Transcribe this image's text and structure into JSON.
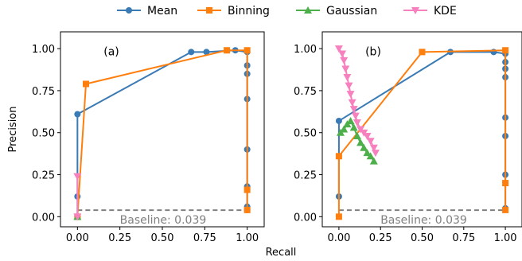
{
  "legend": {
    "placement": "top-center",
    "entries": [
      {
        "name": "Mean",
        "color": "#3a7ab5",
        "marker": "circle"
      },
      {
        "name": "Binning",
        "color": "#ff7f0e",
        "marker": "square"
      },
      {
        "name": "Gaussian",
        "color": "#4daf4a",
        "marker": "triangle-up"
      },
      {
        "name": "KDE",
        "color": "#f781bf",
        "marker": "triangle-down"
      }
    ]
  },
  "shared_xlabel": "Recall",
  "chart_data": [
    {
      "type": "line",
      "panel_label": "(a)",
      "xlabel": "",
      "ylabel": "Precision",
      "xlim": [
        -0.1,
        1.1
      ],
      "ylim": [
        -0.06,
        1.1
      ],
      "xticks": [
        0.0,
        0.25,
        0.5,
        0.75,
        1.0
      ],
      "xticklabels": [
        "0.00",
        "0.25",
        "0.50",
        "0.75",
        "1.00"
      ],
      "yticks": [
        0.0,
        0.25,
        0.5,
        0.75,
        1.0
      ],
      "yticklabels": [
        "0.00",
        "0.25",
        "0.50",
        "0.75",
        "1.00"
      ],
      "grid": false,
      "baseline": {
        "value": 0.039,
        "label": "Baseline: 0.039"
      },
      "series": [
        {
          "name": "Mean",
          "x": [
            0.0,
            0.0,
            0.0,
            0.67,
            0.76,
            0.93,
            1.0,
            1.0,
            1.0,
            1.0,
            1.0,
            1.0,
            1.0,
            1.0
          ],
          "y": [
            0.0,
            0.12,
            0.61,
            0.98,
            0.98,
            0.99,
            0.98,
            0.9,
            0.85,
            0.7,
            0.4,
            0.18,
            0.06,
            0.04
          ]
        },
        {
          "name": "Binning",
          "x": [
            0.0,
            0.05,
            0.88,
            1.0,
            1.0,
            1.0
          ],
          "y": [
            0.0,
            0.79,
            0.99,
            0.99,
            0.16,
            0.04
          ]
        },
        {
          "name": "Gaussian",
          "x": [
            0.0
          ],
          "y": [
            0.0
          ]
        },
        {
          "name": "KDE",
          "x": [
            0.0,
            0.0
          ],
          "y": [
            0.0,
            0.24
          ]
        }
      ]
    },
    {
      "type": "line",
      "panel_label": "(b)",
      "xlabel": "",
      "ylabel": "",
      "xlim": [
        -0.1,
        1.1
      ],
      "ylim": [
        -0.06,
        1.1
      ],
      "xticks": [
        0.0,
        0.25,
        0.5,
        0.75,
        1.0
      ],
      "xticklabels": [
        "0.00",
        "0.25",
        "0.50",
        "0.75",
        "1.00"
      ],
      "yticks": [
        0.0,
        0.25,
        0.5,
        0.75,
        1.0
      ],
      "yticklabels": [
        "0.00",
        "0.25",
        "0.50",
        "0.75",
        "1.00"
      ],
      "grid": false,
      "baseline": {
        "value": 0.039,
        "label": "Baseline: 0.039"
      },
      "series": [
        {
          "name": "Mean",
          "x": [
            0.0,
            0.0,
            0.67,
            0.93,
            1.0,
            1.0,
            1.0,
            1.0,
            1.0,
            1.0,
            1.0,
            1.0
          ],
          "y": [
            0.12,
            0.57,
            0.98,
            0.98,
            0.97,
            0.92,
            0.88,
            0.83,
            0.59,
            0.48,
            0.25,
            0.05
          ]
        },
        {
          "name": "Binning",
          "x": [
            0.0,
            0.0,
            0.5,
            1.0,
            1.0,
            1.0
          ],
          "y": [
            0.0,
            0.36,
            0.98,
            0.99,
            0.2,
            0.04
          ]
        },
        {
          "name": "Gaussian",
          "x": [
            0.01,
            0.03,
            0.05,
            0.07,
            0.09,
            0.11,
            0.13,
            0.15,
            0.17,
            0.19,
            0.21
          ],
          "y": [
            0.5,
            0.52,
            0.55,
            0.57,
            0.53,
            0.48,
            0.44,
            0.41,
            0.38,
            0.36,
            0.33
          ]
        },
        {
          "name": "KDE",
          "x": [
            0.0,
            0.02,
            0.03,
            0.04,
            0.05,
            0.06,
            0.07,
            0.08,
            0.09,
            0.1,
            0.11,
            0.13,
            0.15,
            0.17,
            0.19,
            0.21,
            0.22
          ],
          "y": [
            1.0,
            0.97,
            0.93,
            0.88,
            0.83,
            0.78,
            0.73,
            0.68,
            0.64,
            0.6,
            0.56,
            0.52,
            0.5,
            0.48,
            0.45,
            0.41,
            0.38
          ]
        }
      ]
    }
  ]
}
